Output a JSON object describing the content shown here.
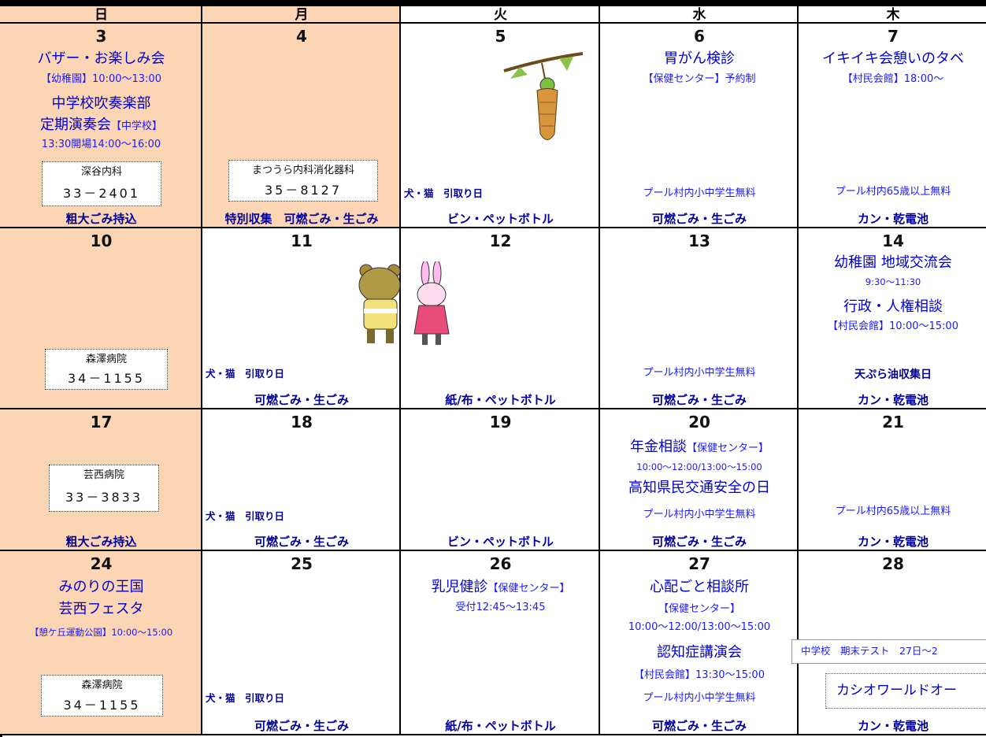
{
  "header": {
    "days": [
      "日",
      "月",
      "火",
      "水",
      "木"
    ]
  },
  "weeks": [
    {
      "cells": [
        {
          "day": 3,
          "items": [
            "バザー・お楽しみ会",
            "【幼稚園】10:00～13:00",
            "中学校吹奏楽部",
            [
              "定期演奏会",
              "【中学校】"
            ],
            "13:30開場14:00～16:00"
          ],
          "box": [
            "深谷内科",
            "33－2401"
          ],
          "collection": "粗大ごみ持込"
        },
        {
          "day": 4,
          "items": [],
          "box": [
            "まつうら内科消化器科",
            "35－8127"
          ],
          "collection": "特別収集　可燃ごみ・生ごみ"
        },
        {
          "day": 5,
          "items": [
            "犬・猫　引取り日"
          ],
          "collection": "ビン・ペットボトル"
        },
        {
          "day": 6,
          "items": [
            "胃がん検診",
            "【保健センター】予約制",
            "プール村内小中学生無料"
          ],
          "collection": "可燃ごみ・生ごみ"
        },
        {
          "day": 7,
          "items": [
            "イキイキ会憩いのタベ",
            "【村民会館】18:00～",
            "プール村内65歳以上無料"
          ],
          "collection": "カン・乾電池"
        }
      ]
    },
    {
      "cells": [
        {
          "day": 10,
          "items": [],
          "box": [
            "森澤病院",
            "34－1155"
          ]
        },
        {
          "day": 11,
          "items": [
            "犬・猫　引取り日"
          ],
          "collection": "可燃ごみ・生ごみ"
        },
        {
          "day": 12,
          "items": [],
          "collection": "紙/布・ペットボトル"
        },
        {
          "day": 13,
          "items": [
            "プール村内小中学生無料"
          ],
          "collection": "可燃ごみ・生ごみ"
        },
        {
          "day": 14,
          "items": [
            "幼稚園 地域交流会",
            "9:30～11:30",
            "行政・人権相談",
            "【村民会館】10:00～15:00",
            "天ぷら油収集日"
          ],
          "collection": "カン・乾電池"
        }
      ]
    },
    {
      "cells": [
        {
          "day": 17,
          "items": [],
          "box": [
            "芸西病院",
            "33－3833"
          ],
          "collection": "粗大ごみ持込"
        },
        {
          "day": 18,
          "items": [
            "犬・猫　引取り日"
          ],
          "collection": "可燃ごみ・生ごみ"
        },
        {
          "day": 19,
          "items": [],
          "collection": "ビン・ペットボトル"
        },
        {
          "day": 20,
          "items": [
            [
              "年金相談",
              "【保健センター】"
            ],
            "10:00～12:00/13:00～15:00",
            "高知県民交通安全の日",
            "プール村内小中学生無料"
          ],
          "collection": "可燃ごみ・生ごみ"
        },
        {
          "day": 21,
          "items": [
            "プール村内65歳以上無料"
          ],
          "collection": "カン・乾電池"
        }
      ]
    },
    {
      "cells": [
        {
          "day": 24,
          "items": [
            "みのりの王国",
            "芸西フェスタ",
            "【憩ケ丘運動公園】10:00～15:00"
          ],
          "box": [
            "森澤病院",
            "34－1155"
          ]
        },
        {
          "day": 25,
          "items": [
            "犬・猫　引取り日"
          ],
          "collection": "可燃ごみ・生ごみ"
        },
        {
          "day": 26,
          "items": [
            [
              "乳児健診",
              "【保健センター】"
            ],
            "受付12:45～13:45"
          ],
          "collection": "紙/布・ペットボトル"
        },
        {
          "day": 27,
          "items": [
            "心配ごと相談所",
            "【保健センター】",
            "10:00～12:00/13:00～15:00",
            "認知症講演会",
            "【村民会館】13:30～15:00",
            "プール村内小中学生無料"
          ],
          "collection": "可燃ごみ・生ごみ"
        },
        {
          "day": 28,
          "items": [
            "中学校　期末テスト　27日～2",
            "カシオワールドオー"
          ],
          "collection": "カン・乾電池"
        }
      ]
    }
  ]
}
